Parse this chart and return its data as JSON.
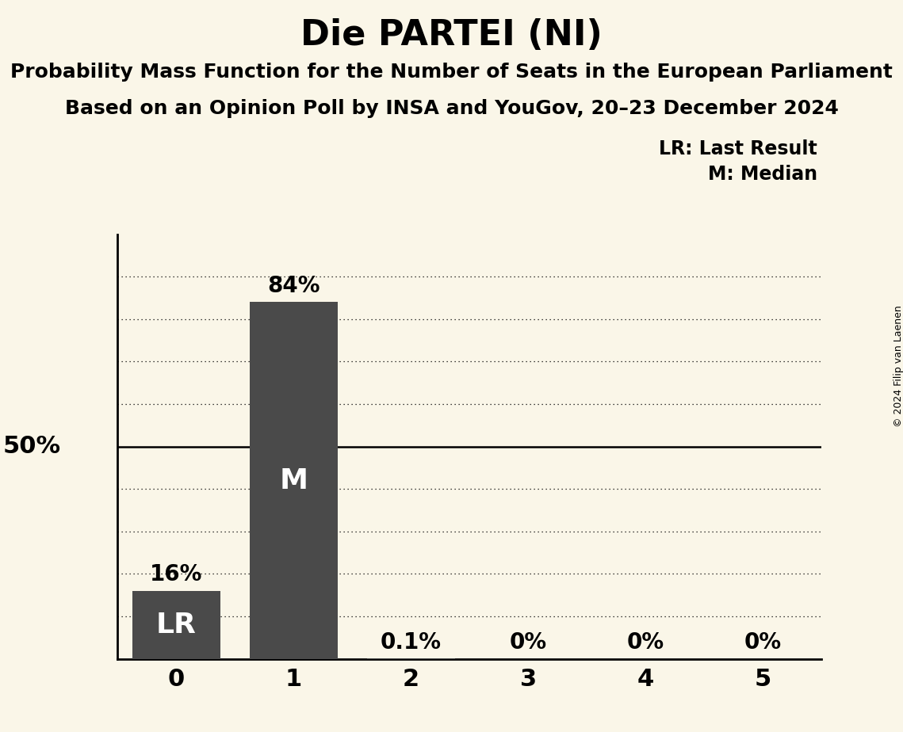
{
  "title": "Die PARTEI (NI)",
  "subtitle1": "Probability Mass Function for the Number of Seats in the European Parliament",
  "subtitle2": "Based on an Opinion Poll by INSA and YouGov, 20–23 December 2024",
  "copyright": "© 2024 Filip van Laenen",
  "categories": [
    0,
    1,
    2,
    3,
    4,
    5
  ],
  "values": [
    0.16,
    0.84,
    0.001,
    0.0,
    0.0,
    0.0
  ],
  "bar_labels": [
    "16%",
    "84%",
    "0.1%",
    "0%",
    "0%",
    "0%"
  ],
  "inside_labels": [
    "LR",
    "M",
    "",
    "",
    "",
    ""
  ],
  "bar_color": "#4a4a4a",
  "background_color": "#faf6e8",
  "title_fontsize": 32,
  "subtitle_fontsize": 18,
  "label_fontsize": 20,
  "tick_fontsize": 22,
  "ylabel_50_fontsize": 22,
  "inside_label_fontsize": 26,
  "legend_lr": "LR: Last Result",
  "legend_m": "M: Median",
  "legend_fontsize": 17,
  "ylim": [
    0,
    1.0
  ],
  "solid_line": 0.5,
  "dotted_lines": [
    0.1,
    0.2,
    0.3,
    0.4,
    0.6,
    0.7,
    0.8,
    0.9
  ],
  "copyright_fontsize": 9
}
